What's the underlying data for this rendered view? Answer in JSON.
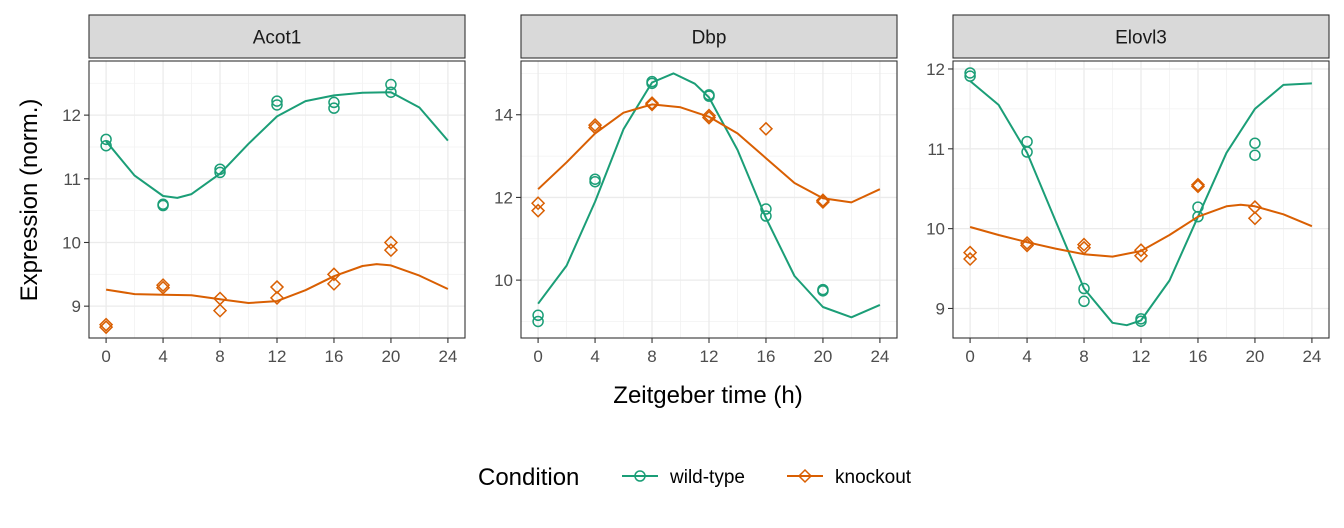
{
  "chart_data": {
    "type": "scatter",
    "xlabel": "Zeitgeber time (h)",
    "ylabel": "Expression (norm.)",
    "legend": {
      "title": "Condition",
      "position": "bottom",
      "entries": [
        {
          "name": "wild-type",
          "color": "#1b9e77",
          "marker": "circle"
        },
        {
          "name": "knockout",
          "color": "#d95f02",
          "marker": "diamond"
        }
      ]
    },
    "x_ticks": [
      0,
      4,
      8,
      12,
      16,
      20,
      24
    ],
    "xlim": [
      -1.2,
      25.2
    ],
    "grid": true,
    "facets": [
      {
        "title": "Acot1",
        "ylim": [
          8.5,
          12.85
        ],
        "y_ticks": [
          9,
          10,
          11,
          12
        ],
        "series": [
          {
            "name": "wild-type",
            "points": [
              [
                0,
                11.62
              ],
              [
                0,
                11.52
              ],
              [
                4,
                10.6
              ],
              [
                4,
                10.58
              ],
              [
                8,
                11.15
              ],
              [
                8,
                11.1
              ],
              [
                12,
                12.22
              ],
              [
                12,
                12.16
              ],
              [
                16,
                12.2
              ],
              [
                16,
                12.11
              ],
              [
                20,
                12.48
              ],
              [
                20,
                12.36
              ]
            ],
            "fit": [
              [
                0,
                11.59
              ],
              [
                2,
                11.05
              ],
              [
                4,
                10.73
              ],
              [
                5,
                10.7
              ],
              [
                6,
                10.76
              ],
              [
                8,
                11.08
              ],
              [
                10,
                11.55
              ],
              [
                12,
                11.98
              ],
              [
                14,
                12.22
              ],
              [
                16,
                12.31
              ],
              [
                18,
                12.35
              ],
              [
                20,
                12.36
              ],
              [
                22,
                12.12
              ],
              [
                24,
                11.6
              ]
            ]
          },
          {
            "name": "knockout",
            "points": [
              [
                0,
                8.71
              ],
              [
                0,
                8.67
              ],
              [
                4,
                9.33
              ],
              [
                4,
                9.29
              ],
              [
                8,
                9.12
              ],
              [
                8,
                8.93
              ],
              [
                12,
                9.3
              ],
              [
                12,
                9.13
              ],
              [
                16,
                9.5
              ],
              [
                16,
                9.35
              ],
              [
                20,
                10.0
              ],
              [
                20,
                9.88
              ]
            ],
            "fit": [
              [
                0,
                9.26
              ],
              [
                2,
                9.19
              ],
              [
                4,
                9.18
              ],
              [
                6,
                9.17
              ],
              [
                8,
                9.11
              ],
              [
                10,
                9.05
              ],
              [
                12,
                9.08
              ],
              [
                14,
                9.25
              ],
              [
                16,
                9.47
              ],
              [
                18,
                9.63
              ],
              [
                19,
                9.66
              ],
              [
                20,
                9.64
              ],
              [
                22,
                9.48
              ],
              [
                24,
                9.27
              ]
            ]
          }
        ]
      },
      {
        "title": "Dbp",
        "ylim": [
          8.6,
          15.3
        ],
        "y_ticks": [
          10,
          12,
          14
        ],
        "series": [
          {
            "name": "wild-type",
            "points": [
              [
                0,
                9.15
              ],
              [
                0,
                9.0
              ],
              [
                4,
                12.44
              ],
              [
                4,
                12.38
              ],
              [
                8,
                14.8
              ],
              [
                8,
                14.76
              ],
              [
                12,
                14.48
              ],
              [
                12,
                14.45
              ],
              [
                16,
                11.72
              ],
              [
                16,
                11.55
              ],
              [
                20,
                9.77
              ],
              [
                20,
                9.74
              ]
            ],
            "fit": [
              [
                0,
                9.43
              ],
              [
                2,
                10.35
              ],
              [
                4,
                11.9
              ],
              [
                6,
                13.65
              ],
              [
                8,
                14.78
              ],
              [
                9.5,
                15.0
              ],
              [
                11,
                14.75
              ],
              [
                12,
                14.42
              ],
              [
                14,
                13.15
              ],
              [
                16,
                11.5
              ],
              [
                18,
                10.1
              ],
              [
                20,
                9.35
              ],
              [
                22,
                9.1
              ],
              [
                24,
                9.4
              ]
            ]
          },
          {
            "name": "knockout",
            "points": [
              [
                0,
                11.86
              ],
              [
                0,
                11.68
              ],
              [
                4,
                13.75
              ],
              [
                4,
                13.69
              ],
              [
                8,
                14.28
              ],
              [
                8,
                14.25
              ],
              [
                12,
                13.98
              ],
              [
                12,
                13.93
              ],
              [
                16,
                13.66
              ],
              [
                20,
                11.93
              ],
              [
                20,
                11.89
              ]
            ],
            "fit": [
              [
                0,
                12.2
              ],
              [
                2,
                12.85
              ],
              [
                4,
                13.55
              ],
              [
                6,
                14.05
              ],
              [
                8,
                14.25
              ],
              [
                10,
                14.18
              ],
              [
                12,
                13.95
              ],
              [
                14,
                13.55
              ],
              [
                16,
                12.95
              ],
              [
                18,
                12.35
              ],
              [
                20,
                11.98
              ],
              [
                22,
                11.88
              ],
              [
                24,
                12.2
              ]
            ]
          }
        ]
      },
      {
        "title": "Elovl3",
        "ylim": [
          8.63,
          12.1
        ],
        "y_ticks": [
          9,
          10,
          11,
          12
        ],
        "series": [
          {
            "name": "wild-type",
            "points": [
              [
                0,
                11.95
              ],
              [
                0,
                11.91
              ],
              [
                4,
                11.09
              ],
              [
                4,
                10.96
              ],
              [
                8,
                9.25
              ],
              [
                8,
                9.09
              ],
              [
                12,
                8.87
              ],
              [
                12,
                8.84
              ],
              [
                16,
                10.27
              ],
              [
                16,
                10.15
              ],
              [
                20,
                11.07
              ],
              [
                20,
                10.92
              ]
            ],
            "fit": [
              [
                0,
                11.85
              ],
              [
                2,
                11.55
              ],
              [
                4,
                10.95
              ],
              [
                6,
                10.1
              ],
              [
                8,
                9.25
              ],
              [
                10,
                8.82
              ],
              [
                11,
                8.79
              ],
              [
                12,
                8.85
              ],
              [
                14,
                9.35
              ],
              [
                16,
                10.15
              ],
              [
                18,
                10.95
              ],
              [
                20,
                11.5
              ],
              [
                22,
                11.8
              ],
              [
                24,
                11.82
              ]
            ]
          },
          {
            "name": "knockout",
            "points": [
              [
                0,
                9.7
              ],
              [
                0,
                9.62
              ],
              [
                4,
                9.82
              ],
              [
                4,
                9.79
              ],
              [
                8,
                9.8
              ],
              [
                8,
                9.76
              ],
              [
                12,
                9.73
              ],
              [
                12,
                9.66
              ],
              [
                16,
                10.55
              ],
              [
                16,
                10.53
              ],
              [
                20,
                10.27
              ],
              [
                20,
                10.13
              ]
            ],
            "fit": [
              [
                0,
                10.02
              ],
              [
                2,
                9.92
              ],
              [
                4,
                9.83
              ],
              [
                6,
                9.75
              ],
              [
                8,
                9.68
              ],
              [
                10,
                9.65
              ],
              [
                12,
                9.72
              ],
              [
                14,
                9.92
              ],
              [
                16,
                10.15
              ],
              [
                18,
                10.28
              ],
              [
                19,
                10.3
              ],
              [
                20,
                10.28
              ],
              [
                22,
                10.18
              ],
              [
                24,
                10.03
              ]
            ]
          }
        ]
      }
    ]
  }
}
